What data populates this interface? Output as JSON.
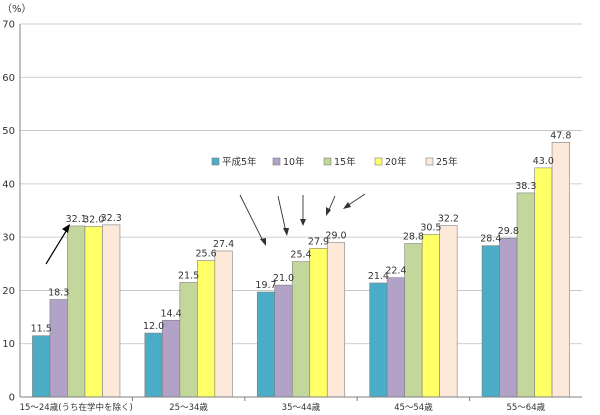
{
  "chart_data": {
    "type": "bar",
    "title": "",
    "xlabel": "",
    "ylabel": "",
    "unit": "（%）",
    "ylim": [
      0,
      70
    ],
    "yticks": [
      0,
      10,
      20,
      30,
      40,
      50,
      60,
      70
    ],
    "grid": true,
    "legend_position": "center",
    "categories": [
      "15～24歳(うち在学中を除く)",
      "25～34歳",
      "35～44歳",
      "45～54歳",
      "55～64歳"
    ],
    "series": [
      {
        "name": "平成5年",
        "color": "#4bacc6",
        "values": [
          11.5,
          12.0,
          19.7,
          21.4,
          28.4
        ]
      },
      {
        "name": "10年",
        "color": "#b3a2c7",
        "values": [
          18.3,
          14.4,
          21.0,
          22.4,
          29.8
        ]
      },
      {
        "name": "15年",
        "color": "#c3d69b",
        "values": [
          32.1,
          21.5,
          25.4,
          28.8,
          38.3
        ]
      },
      {
        "name": "20年",
        "color": "#ffff66",
        "values": [
          32.0,
          25.6,
          27.9,
          30.5,
          43.0
        ]
      },
      {
        "name": "25年",
        "color": "#fde9d9",
        "values": [
          32.3,
          27.4,
          29.0,
          32.2,
          47.8
        ]
      }
    ]
  }
}
